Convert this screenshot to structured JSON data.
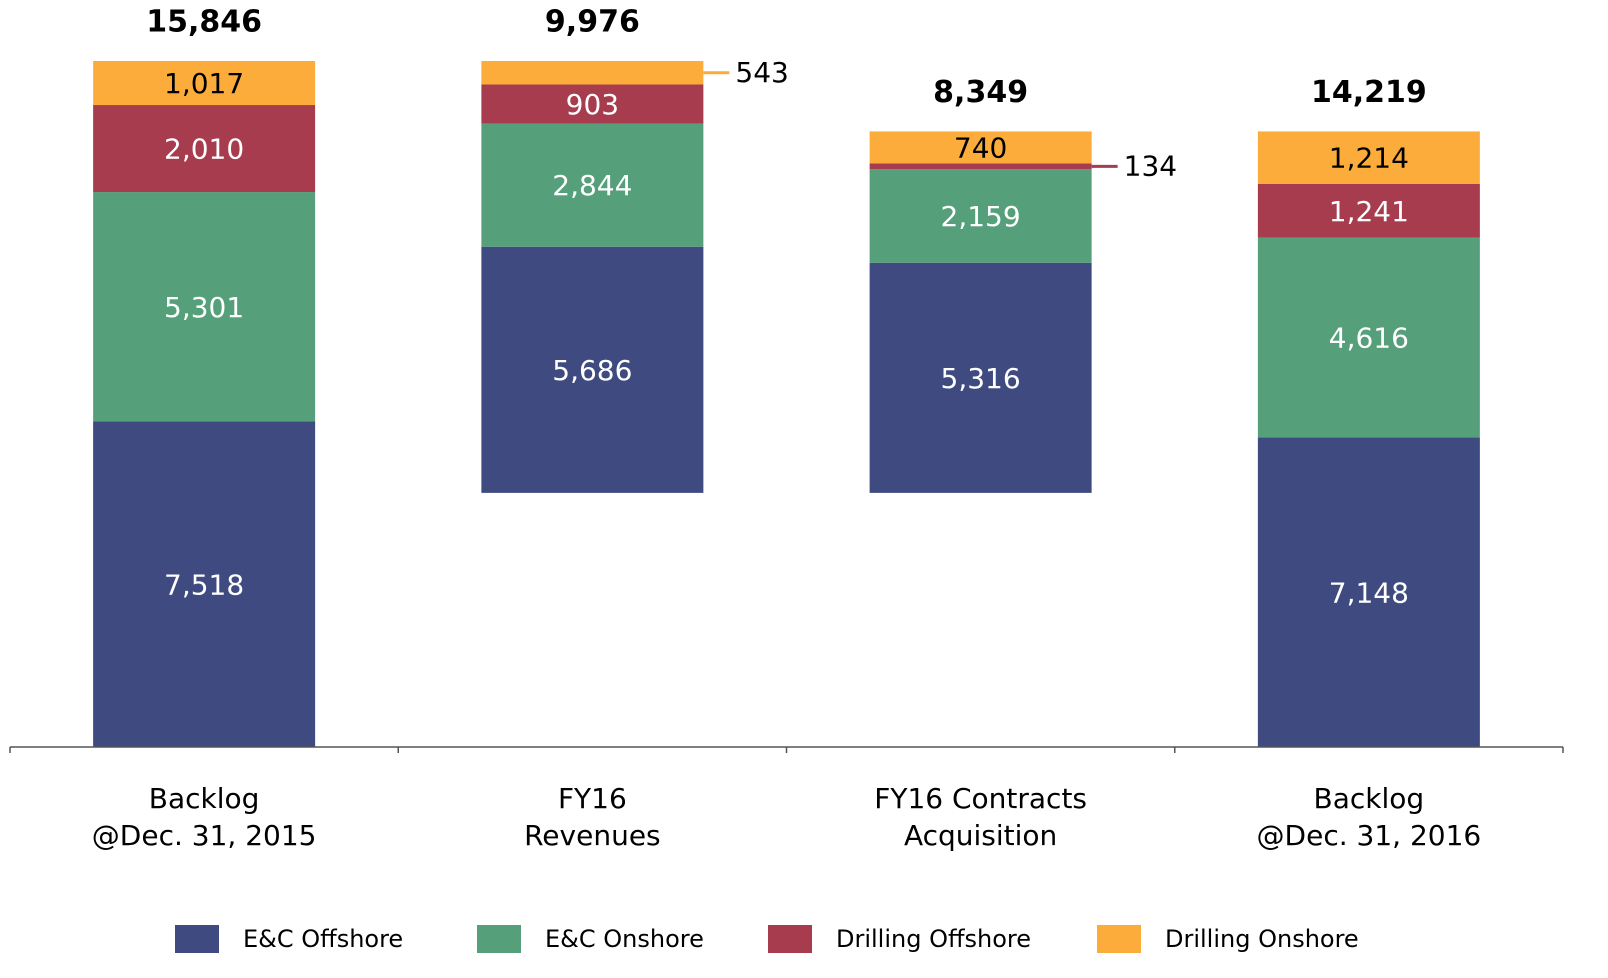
{
  "chart_data": {
    "type": "waterfall",
    "categories": [
      [
        "Backlog",
        "@Dec. 31, 2015"
      ],
      [
        "FY16",
        "Revenues"
      ],
      [
        "FY16 Contracts",
        "Acquisition"
      ],
      [
        "Backlog",
        "@Dec. 31, 2016"
      ]
    ],
    "steps": [
      "total",
      "decrease",
      "increase",
      "total"
    ],
    "series": [
      {
        "name": "E&C Offshore",
        "color": "#3f4b80",
        "label_color": "#ffffff",
        "values": [
          7518,
          5686,
          5316,
          7148
        ],
        "value_labels": [
          "7,518",
          "5,686",
          "5,316",
          "7,148"
        ]
      },
      {
        "name": "E&C Onshore",
        "color": "#55a07b",
        "label_color": "#ffffff",
        "values": [
          5301,
          2844,
          2159,
          4616
        ],
        "value_labels": [
          "5,301",
          "2,844",
          "2,159",
          "4,616"
        ]
      },
      {
        "name": "Drilling Offshore",
        "color": "#a83c4f",
        "label_color": "#ffffff",
        "values": [
          2010,
          903,
          134,
          1241
        ],
        "value_labels": [
          "2,010",
          "903",
          "134",
          "1,241"
        ]
      },
      {
        "name": "Drilling Onshore",
        "color": "#fbac3a",
        "label_color": "#000000",
        "values": [
          1017,
          543,
          740,
          1214
        ],
        "value_labels": [
          "1,017",
          "543",
          "740",
          "1,214"
        ]
      }
    ],
    "totals": [
      15846,
      9976,
      8349,
      14219
    ],
    "total_labels": [
      "15,846",
      "9,976",
      "8,349",
      "14,219"
    ],
    "legend": "bottom"
  }
}
